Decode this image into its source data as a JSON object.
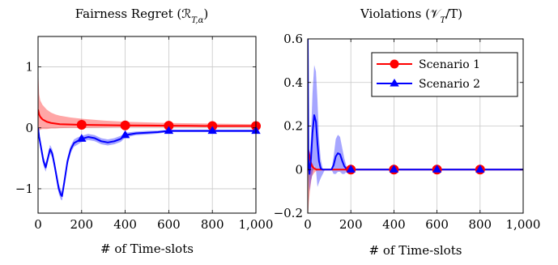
{
  "chart_data": [
    {
      "type": "line",
      "title": "Fairness Regret (ℛ",
      "title_sub": "T,α",
      "title_close": ")",
      "xlabel": "# of Time-slots",
      "ylabel": "",
      "xlim": [
        0,
        1000
      ],
      "ylim": [
        -1.4,
        1.5
      ],
      "xticks": [
        0,
        200,
        400,
        600,
        800,
        1000
      ],
      "xtick_labels": [
        "0",
        "200",
        "400",
        "600",
        "800",
        "1,000"
      ],
      "yticks": [
        1,
        0,
        -1
      ],
      "ytick_labels": [
        "1",
        "0",
        "−1"
      ],
      "grid": true,
      "series": [
        {
          "name": "Scenario 1",
          "color": "#ff0000",
          "marker": "circle",
          "markers_x": [
            200,
            400,
            600,
            800,
            1000
          ],
          "x": [
            0,
            5,
            10,
            20,
            40,
            60,
            80,
            100,
            150,
            200,
            300,
            400,
            500,
            600,
            700,
            800,
            900,
            1000
          ],
          "y": [
            0.3,
            0.22,
            0.18,
            0.14,
            0.1,
            0.08,
            0.07,
            0.06,
            0.055,
            0.05,
            0.045,
            0.04,
            0.038,
            0.035,
            0.033,
            0.03,
            0.03,
            0.03
          ],
          "band_upper": [
            1.0,
            0.55,
            0.45,
            0.38,
            0.3,
            0.25,
            0.22,
            0.2,
            0.17,
            0.15,
            0.12,
            0.1,
            0.09,
            0.08,
            0.075,
            0.07,
            0.065,
            0.06
          ],
          "band_lower": [
            -0.1,
            -0.05,
            -0.03,
            -0.02,
            -0.02,
            -0.01,
            -0.01,
            -0.005,
            0.0,
            0.0,
            0.005,
            0.01,
            0.01,
            0.01,
            0.01,
            0.01,
            0.01,
            0.01
          ]
        },
        {
          "name": "Scenario 2",
          "color": "#0000ff",
          "marker": "triangle",
          "markers_x": [
            200,
            400,
            600,
            800,
            1000
          ],
          "x": [
            0,
            5,
            15,
            25,
            35,
            45,
            55,
            65,
            75,
            85,
            95,
            105,
            110,
            120,
            135,
            150,
            165,
            180,
            200,
            230,
            260,
            290,
            320,
            350,
            380,
            400,
            450,
            500,
            550,
            600,
            700,
            800,
            900,
            1000
          ],
          "y": [
            0.0,
            -0.15,
            -0.35,
            -0.55,
            -0.65,
            -0.5,
            -0.35,
            -0.42,
            -0.6,
            -0.8,
            -1.0,
            -1.1,
            -1.12,
            -0.9,
            -0.55,
            -0.35,
            -0.25,
            -0.22,
            -0.18,
            -0.15,
            -0.17,
            -0.22,
            -0.24,
            -0.22,
            -0.18,
            -0.12,
            -0.09,
            -0.08,
            -0.07,
            -0.05,
            -0.05,
            -0.05,
            -0.05,
            -0.05
          ],
          "band_upper": [
            0.05,
            -0.1,
            -0.28,
            -0.48,
            -0.58,
            -0.44,
            -0.28,
            -0.35,
            -0.53,
            -0.72,
            -0.92,
            -1.02,
            -1.05,
            -0.83,
            -0.48,
            -0.29,
            -0.19,
            -0.16,
            -0.13,
            -0.1,
            -0.12,
            -0.17,
            -0.19,
            -0.17,
            -0.13,
            -0.08,
            -0.06,
            -0.05,
            -0.045,
            -0.03,
            -0.03,
            -0.03,
            -0.03,
            -0.03
          ],
          "band_lower": [
            -0.05,
            -0.2,
            -0.42,
            -0.62,
            -0.72,
            -0.56,
            -0.42,
            -0.49,
            -0.67,
            -0.88,
            -1.08,
            -1.18,
            -1.19,
            -0.97,
            -0.62,
            -0.41,
            -0.31,
            -0.28,
            -0.23,
            -0.2,
            -0.22,
            -0.27,
            -0.29,
            -0.27,
            -0.23,
            -0.16,
            -0.12,
            -0.11,
            -0.095,
            -0.07,
            -0.07,
            -0.07,
            -0.07,
            -0.07
          ]
        }
      ]
    },
    {
      "type": "line",
      "title": "Violations (𝒱",
      "title_sub": "T",
      "title_close": "/T)",
      "xlabel": "# of Time-slots",
      "ylabel": "",
      "xlim": [
        0,
        1000
      ],
      "ylim": [
        -0.2,
        0.6
      ],
      "xticks": [
        0,
        200,
        400,
        600,
        800,
        1000
      ],
      "xtick_labels": [
        "0",
        "200",
        "400",
        "600",
        "800",
        "1,000"
      ],
      "yticks": [
        0.6,
        0.4,
        0.2,
        0,
        -0.2
      ],
      "ytick_labels": [
        "0.6",
        "0.4",
        "0.2",
        "0",
        "−0.2"
      ],
      "grid": true,
      "legend_position": "top-right",
      "series": [
        {
          "name": "Scenario 1",
          "color": "#ff0000",
          "marker": "circle",
          "markers_x": [
            200,
            400,
            600,
            800
          ],
          "x": [
            0,
            2,
            5,
            10,
            15,
            20,
            30,
            40,
            60,
            80,
            100,
            150,
            200,
            400,
            600,
            800,
            1000
          ],
          "y": [
            0.0,
            0.09,
            0.08,
            0.05,
            0.03,
            0.015,
            0.005,
            0.0,
            0.0,
            0.0,
            0.0,
            0.0,
            0.0,
            0.0,
            0.0,
            0.0,
            0.0
          ],
          "band_upper": [
            0.0,
            0.12,
            0.1,
            0.07,
            0.05,
            0.03,
            0.015,
            0.005,
            0.0,
            0.0,
            0.0,
            0.0,
            0.0,
            0.0,
            0.0,
            0.0,
            0.0
          ],
          "band_lower": [
            0.0,
            -0.2,
            -0.15,
            -0.1,
            -0.06,
            -0.03,
            -0.015,
            -0.005,
            0.0,
            0.0,
            0.0,
            0.0,
            0.0,
            0.0,
            0.0,
            0.0,
            0.0
          ]
        },
        {
          "name": "Scenario 2",
          "color": "#0000ff",
          "marker": "triangle",
          "markers_x": [
            200,
            400,
            600,
            800
          ],
          "x": [
            0,
            1,
            3,
            8,
            15,
            22,
            30,
            38,
            45,
            52,
            60,
            70,
            80,
            90,
            100,
            110,
            120,
            130,
            140,
            150,
            160,
            170,
            180,
            190,
            200,
            300,
            400,
            600,
            800,
            1000
          ],
          "y": [
            0.6,
            0.4,
            0.05,
            -0.02,
            0.05,
            0.17,
            0.25,
            0.22,
            0.12,
            0.04,
            0.005,
            0.0,
            0.0,
            0.0,
            0.0,
            0.0,
            0.02,
            0.06,
            0.075,
            0.07,
            0.04,
            0.015,
            0.003,
            0.0,
            0.0,
            0.0,
            0.0,
            0.0,
            0.0,
            0.0
          ],
          "band_upper": [
            0.6,
            0.42,
            0.1,
            0.05,
            0.15,
            0.35,
            0.48,
            0.45,
            0.32,
            0.15,
            0.05,
            0.0,
            0.0,
            0.0,
            0.0,
            0.0,
            0.06,
            0.14,
            0.16,
            0.15,
            0.1,
            0.05,
            0.015,
            0.0,
            0.0,
            0.0,
            0.0,
            0.0,
            0.0,
            0.0
          ],
          "band_lower": [
            0.6,
            0.38,
            0.0,
            -0.1,
            -0.05,
            -0.02,
            0.02,
            0.0,
            -0.08,
            -0.06,
            -0.04,
            -0.02,
            0.0,
            0.0,
            0.0,
            0.0,
            -0.02,
            -0.02,
            -0.01,
            -0.01,
            -0.02,
            -0.02,
            -0.01,
            0.0,
            0.0,
            0.0,
            0.0,
            0.0,
            0.0,
            0.0
          ]
        }
      ]
    }
  ]
}
